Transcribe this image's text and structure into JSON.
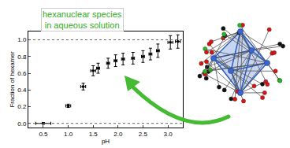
{
  "chart_data": {
    "type": "scatter",
    "annotation": [
      "hexanuclear species",
      "in aqueous solution"
    ],
    "x_label": "pH",
    "y_label": "Fraction of hexamer",
    "x": [
      0.5,
      1.0,
      1.3,
      1.5,
      1.6,
      1.8,
      1.95,
      2.1,
      2.3,
      2.5,
      2.65,
      2.8,
      3.05,
      3.2
    ],
    "values": [
      0.0,
      0.21,
      0.44,
      0.63,
      0.66,
      0.72,
      0.75,
      0.77,
      0.78,
      0.8,
      0.83,
      0.87,
      0.97,
      0.98
    ],
    "y_error": [
      0.01,
      0.02,
      0.04,
      0.06,
      0.06,
      0.06,
      0.07,
      0.07,
      0.07,
      0.07,
      0.07,
      0.08,
      0.08,
      0.08
    ],
    "x_error": [
      0.15,
      0.05,
      0.05,
      0.05,
      0.03,
      0.03,
      0.03,
      0.03,
      0.03,
      0.03,
      0.03,
      0.03,
      0.05,
      0.05
    ],
    "reference_lines": [
      0,
      1
    ],
    "color": "#000000",
    "marker": "square",
    "line_style": "dotted",
    "xlim": [
      0.2,
      3.3
    ],
    "ylim": [
      -0.05,
      1.1
    ],
    "xticks": [
      {
        "value": 0.5,
        "label": "0.5"
      },
      {
        "value": 1,
        "label": "1.0"
      },
      {
        "value": 1.5,
        "label": "1.5"
      },
      {
        "value": 2,
        "label": "2.0"
      },
      {
        "value": 2.5,
        "label": "2.5"
      },
      {
        "value": 3,
        "label": "3.0"
      }
    ],
    "yticks": [
      {
        "value": 0,
        "label": "0.0"
      },
      {
        "value": 0.2,
        "label": "0.2"
      },
      {
        "value": 0.4,
        "label": "0.4"
      },
      {
        "value": 0.6,
        "label": "0.6"
      },
      {
        "value": 0.8,
        "label": "0.8"
      },
      {
        "value": 1,
        "label": "1.0"
      }
    ],
    "grid": false
  }
}
